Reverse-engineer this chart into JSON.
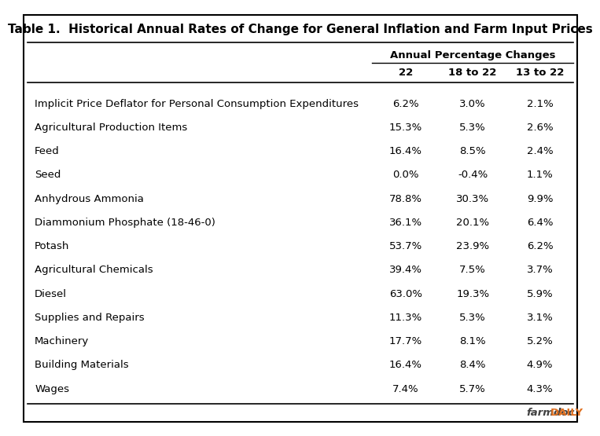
{
  "title": "Table 1.  Historical Annual Rates of Change for General Inflation and Farm Input Prices",
  "subheader": "Annual Percentage Changes",
  "col_headers": [
    "",
    "22",
    "18 to 22",
    "13 to 22"
  ],
  "rows": [
    [
      "Implicit Price Deflator for Personal Consumption Expenditures",
      "6.2%",
      "3.0%",
      "2.1%"
    ],
    [
      "Agricultural Production Items",
      "15.3%",
      "5.3%",
      "2.6%"
    ],
    [
      "Feed",
      "16.4%",
      "8.5%",
      "2.4%"
    ],
    [
      "Seed",
      "0.0%",
      "-0.4%",
      "1.1%"
    ],
    [
      "Anhydrous Ammonia",
      "78.8%",
      "30.3%",
      "9.9%"
    ],
    [
      "Diammonium Phosphate (18-46-0)",
      "36.1%",
      "20.1%",
      "6.4%"
    ],
    [
      "Potash",
      "53.7%",
      "23.9%",
      "6.2%"
    ],
    [
      "Agricultural Chemicals",
      "39.4%",
      "7.5%",
      "3.7%"
    ],
    [
      "Diesel",
      "63.0%",
      "19.3%",
      "5.9%"
    ],
    [
      "Supplies and Repairs",
      "11.3%",
      "5.3%",
      "3.1%"
    ],
    [
      "Machinery",
      "17.7%",
      "8.1%",
      "5.2%"
    ],
    [
      "Building Materials",
      "16.4%",
      "8.4%",
      "4.9%"
    ],
    [
      "Wages",
      "7.4%",
      "5.7%",
      "4.3%"
    ]
  ],
  "watermark_italic": "farmdoc",
  "watermark_bold": "DAILY",
  "watermark_italic_color": "#404040",
  "watermark_bold_color": "#e07020",
  "bg_color": "#ffffff",
  "border_color": "#000000",
  "line_color": "#000000",
  "text_color": "#000000",
  "title_fontsize": 11.0,
  "header_fontsize": 9.5,
  "cell_fontsize": 9.5,
  "watermark_fontsize": 9.5
}
